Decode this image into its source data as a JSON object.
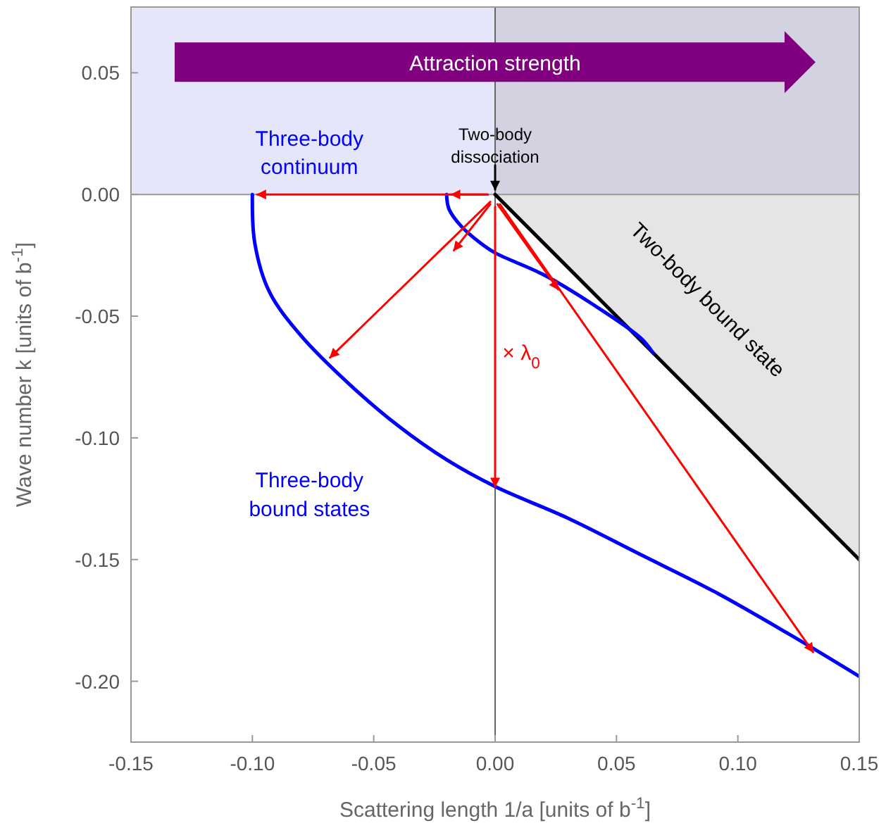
{
  "chart_data": {
    "type": "line",
    "xlabel": "Scattering length 1/a [units of b$^{-1}$]",
    "ylabel": "Wave number k [units of b$^{-1}$]",
    "xlim": [
      -0.15,
      0.15
    ],
    "ylim": [
      -0.225,
      0.077
    ],
    "xticks": [
      {
        "value": -0.15,
        "label": "-0.15"
      },
      {
        "value": -0.1,
        "label": "-0.10"
      },
      {
        "value": -0.05,
        "label": "-0.05"
      },
      {
        "value": 0,
        "label": "0.00"
      },
      {
        "value": 0.05,
        "label": "0.05"
      },
      {
        "value": 0.1,
        "label": "0.10"
      },
      {
        "value": 0.15,
        "label": "0.15"
      }
    ],
    "yticks": [
      {
        "value": -0.2,
        "label": "-0.20"
      },
      {
        "value": -0.15,
        "label": "-0.15"
      },
      {
        "value": -0.1,
        "label": "-0.10"
      },
      {
        "value": -0.05,
        "label": "-0.05"
      },
      {
        "value": 0,
        "label": "0.00"
      },
      {
        "value": 0.05,
        "label": "0.05"
      }
    ],
    "grid": false,
    "marker": "none",
    "ref_lines": [
      {
        "axis": "x",
        "value": 0,
        "color": "#666666"
      },
      {
        "axis": "y",
        "value": 0,
        "color": "#999999"
      }
    ],
    "bands": [
      {
        "axis": "y",
        "from": 0,
        "to": 0.077,
        "color": "#e6e6fa"
      }
    ],
    "series": [
      {
        "color": "#000000",
        "x": [
          0,
          0.075,
          0.15
        ],
        "values": [
          0,
          -0.075,
          -0.15
        ],
        "lower": [
          0,
          -0.075,
          -0.15
        ],
        "upper": [
          0.077,
          0.077,
          0.077
        ]
      },
      {
        "color": "#0000ff",
        "x": [
          -0.1,
          -0.099,
          -0.093,
          -0.08,
          -0.06,
          -0.04,
          -0.02,
          0,
          0.03,
          0.06,
          0.09,
          0.12,
          0.15
        ],
        "values": [
          0,
          -0.02,
          -0.04,
          -0.058,
          -0.078,
          -0.095,
          -0.109,
          -0.12,
          -0.133,
          -0.148,
          -0.163,
          -0.18,
          -0.198
        ]
      },
      {
        "color": "#0000ff",
        "x": [
          -0.02,
          -0.019,
          -0.014,
          -0.006,
          0,
          0.02,
          0.04,
          0.06,
          0.065
        ],
        "values": [
          0,
          -0.006,
          -0.013,
          -0.02,
          -0.024,
          -0.033,
          -0.045,
          -0.059,
          -0.065
        ]
      },
      {
        "color": "#ff0000",
        "x": [
          -0.003,
          -0.098
        ],
        "values": [
          0,
          0
        ]
      },
      {
        "color": "#ff0000",
        "x": [
          -0.003,
          -0.018
        ],
        "values": [
          0,
          0
        ]
      },
      {
        "color": "#ff0000",
        "x": [
          -0.002,
          -0.068
        ],
        "values": [
          -0.003,
          -0.067
        ]
      },
      {
        "color": "#ff0000",
        "x": [
          -0.002,
          -0.017
        ],
        "values": [
          -0.004,
          -0.023
        ]
      },
      {
        "color": "#ff0000",
        "x": [
          0,
          0
        ],
        "values": [
          -0.005,
          -0.12
        ]
      },
      {
        "color": "#ff0000",
        "x": [
          0.001,
          0.026
        ],
        "values": [
          -0.004,
          -0.039
        ]
      },
      {
        "color": "#ff0000",
        "x": [
          0.002,
          0.131
        ],
        "values": [
          -0.004,
          -0.188
        ]
      },
      {
        "color": "#000000",
        "x": [
          0,
          0
        ],
        "values": [
          0.012,
          0.002
        ]
      }
    ],
    "annotations": [
      "Attraction strength",
      "Three-body continuum",
      "Two-body dissociation",
      "Two-body bound state",
      "Three-body bound states",
      "× λ$_{0}$"
    ]
  }
}
